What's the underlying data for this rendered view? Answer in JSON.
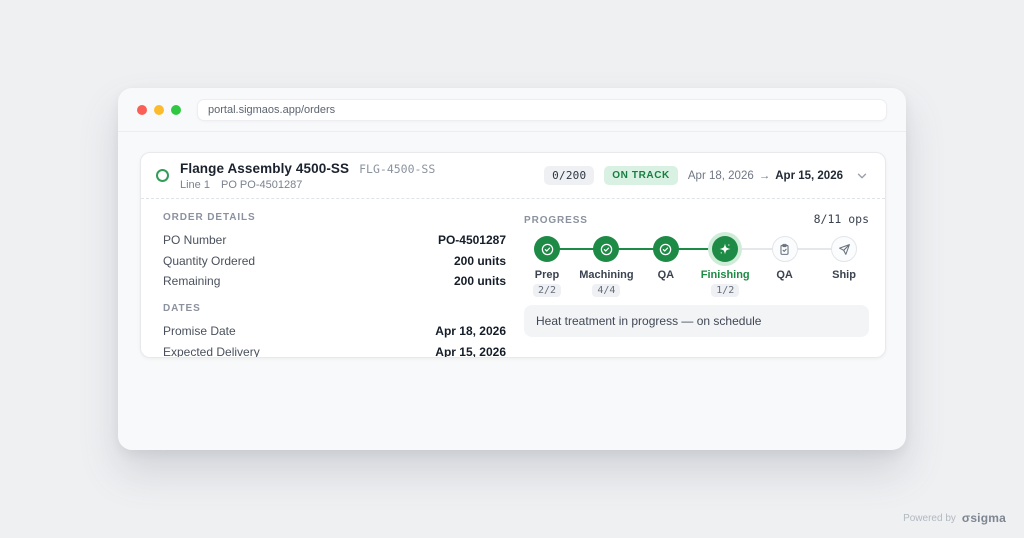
{
  "browser": {
    "url": "portal.sigmaos.app/orders"
  },
  "order_card": {
    "header": {
      "title": "Flange Assembly 4500-SS",
      "sku": "FLG-4500-SS",
      "line_label": "Line 1",
      "po_label": "PO PO-4501287",
      "qty_badge": "0/200",
      "status_badge": "ON TRACK",
      "promise_date": "Apr 18, 2026",
      "date_arrow": "→",
      "expected_date": "Apr 15, 2026"
    },
    "order_details": {
      "section_title": "ORDER DETAILS",
      "rows": [
        {
          "label": "PO Number",
          "value": "PO-4501287"
        },
        {
          "label": "Quantity Ordered",
          "value": "200 units"
        },
        {
          "label": "Remaining",
          "value": "200 units"
        }
      ]
    },
    "dates": {
      "section_title": "DATES",
      "rows": [
        {
          "label": "Promise Date",
          "value": "Apr 18, 2026"
        },
        {
          "label": "Expected Delivery",
          "value": "Apr 15, 2026"
        }
      ]
    },
    "progress": {
      "section_title": "PROGRESS",
      "ops_counter": "8/11 ops",
      "steps": [
        {
          "label": "Prep",
          "count": "2/2",
          "state": "completed",
          "icon": "check-circle"
        },
        {
          "label": "Machining",
          "count": "4/4",
          "state": "completed",
          "icon": "check-circle"
        },
        {
          "label": "QA",
          "count": "",
          "state": "completed",
          "icon": "check-circle"
        },
        {
          "label": "Finishing",
          "count": "1/2",
          "state": "current",
          "icon": "sparkle"
        },
        {
          "label": "QA",
          "count": "",
          "state": "pending",
          "icon": "clipboard"
        },
        {
          "label": "Ship",
          "count": "",
          "state": "pending",
          "icon": "send"
        }
      ],
      "note": "Heat treatment in progress — on schedule"
    }
  },
  "footer": {
    "powered_by": "Powered by",
    "brand_glyph": "σ",
    "brand": "sigma"
  },
  "colors": {
    "accent_green": "#1d8a45",
    "status_badge_bg": "#d9f1e3",
    "status_badge_text": "#177e41",
    "current_halo": "#cfecd9",
    "page_bg": "#eff0f2"
  }
}
